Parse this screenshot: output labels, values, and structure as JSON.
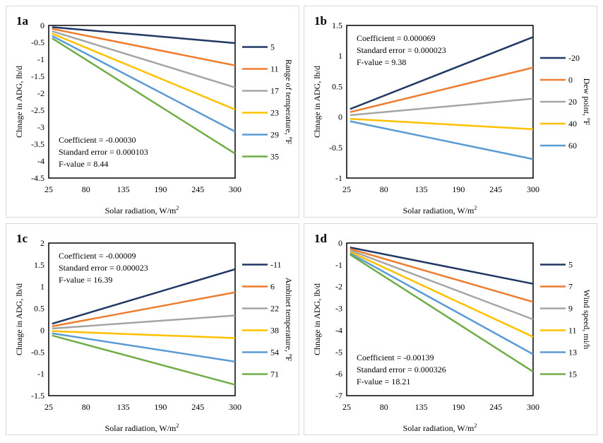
{
  "colors": [
    "#203864",
    "#ED7D31",
    "#A5A5A5",
    "#FFC000",
    "#5B9BD5",
    "#70AD47"
  ],
  "chart_data": [
    {
      "id": "1a",
      "type": "line",
      "panel_label": "1a",
      "xlabel": "Solar radiation, W/m",
      "xlabel_sup": "2",
      "ylabel": "Chnage in ADG, lb/d",
      "legend_title": "Range of temperature, ºF",
      "legend_placement": "right",
      "xlim": [
        25,
        300
      ],
      "xticks": [
        25,
        80,
        135,
        190,
        245,
        300
      ],
      "ylim": [
        -4.5,
        0
      ],
      "yticks": [
        0,
        -0.5,
        -1,
        -1.5,
        -2,
        -2.5,
        -3,
        -3.5,
        -4,
        -4.5
      ],
      "x": [
        30,
        300
      ],
      "series": [
        {
          "name": "5",
          "values": [
            -0.05,
            -0.52
          ]
        },
        {
          "name": "11",
          "values": [
            -0.1,
            -1.18
          ]
        },
        {
          "name": "17",
          "values": [
            -0.17,
            -1.83
          ]
        },
        {
          "name": "23",
          "values": [
            -0.24,
            -2.48
          ]
        },
        {
          "name": "29",
          "values": [
            -0.31,
            -3.13
          ]
        },
        {
          "name": "35",
          "values": [
            -0.38,
            -3.78
          ]
        }
      ],
      "stats_placement": "bottom-left",
      "stats": [
        "Coefficient = -0.00030",
        "Standard error = 0.000103",
        "F-value = 8.44"
      ]
    },
    {
      "id": "1b",
      "type": "line",
      "panel_label": "1b",
      "xlabel": "Solar radiation, W/m",
      "xlabel_sup": "2",
      "ylabel": "Chnage in ADG, lb/d",
      "legend_title": "Dew point, ºF",
      "legend_placement": "right",
      "xlim": [
        25,
        300
      ],
      "xticks": [
        25,
        80,
        135,
        190,
        245,
        300
      ],
      "ylim": [
        -1,
        1.5
      ],
      "yticks": [
        1.5,
        1,
        0.5,
        0,
        -0.5,
        -1
      ],
      "x": [
        30,
        300
      ],
      "series": [
        {
          "name": "-20",
          "values": [
            0.13,
            1.31
          ]
        },
        {
          "name": "0",
          "values": [
            0.08,
            0.81
          ]
        },
        {
          "name": "20",
          "values": [
            0.03,
            0.3
          ]
        },
        {
          "name": "40",
          "values": [
            -0.03,
            -0.2
          ]
        },
        {
          "name": "60",
          "values": [
            -0.07,
            -0.69
          ]
        }
      ],
      "stats_placement": "top-left",
      "stats": [
        "Coefficient = 0.000069",
        "Standard error = 0.000023",
        "F-value = 9.38"
      ]
    },
    {
      "id": "1c",
      "type": "line",
      "panel_label": "1c",
      "xlabel": "Solar radiation, W/m",
      "xlabel_sup": "2",
      "ylabel": "Chnage in ADG, lb/d",
      "legend_title": "Ambinet temperature, ºF",
      "legend_placement": "right",
      "xlim": [
        25,
        300
      ],
      "xticks": [
        25,
        80,
        135,
        190,
        245,
        300
      ],
      "ylim": [
        -1.5,
        2
      ],
      "yticks": [
        2,
        1.5,
        1,
        0.5,
        0,
        -0.5,
        -1,
        -1.5
      ],
      "x": [
        30,
        300
      ],
      "series": [
        {
          "name": "-11",
          "values": [
            0.15,
            1.4
          ]
        },
        {
          "name": "6",
          "values": [
            0.09,
            0.87
          ]
        },
        {
          "name": "22",
          "values": [
            0.04,
            0.34
          ]
        },
        {
          "name": "38",
          "values": [
            -0.02,
            -0.18
          ]
        },
        {
          "name": "54",
          "values": [
            -0.07,
            -0.72
          ]
        },
        {
          "name": "71",
          "values": [
            -0.12,
            -1.25
          ]
        }
      ],
      "stats_placement": "top-left",
      "stats": [
        "Coefficient = -0.00009",
        "Standard error = 0.000023",
        "F-value = 16.39"
      ]
    },
    {
      "id": "1d",
      "type": "line",
      "panel_label": "1d",
      "xlabel": "Solar radiation, W/m",
      "xlabel_sup": "2",
      "ylabel": "Chnage in ADG, lb/d",
      "legend_title": "Wind speed, mi/h",
      "legend_placement": "right",
      "xlim": [
        25,
        300
      ],
      "xticks": [
        25,
        80,
        135,
        190,
        245,
        300
      ],
      "ylim": [
        -7,
        0
      ],
      "yticks": [
        0,
        -1,
        -2,
        -3,
        -4,
        -5,
        -6,
        -7
      ],
      "x": [
        30,
        300
      ],
      "series": [
        {
          "name": "5",
          "values": [
            -0.2,
            -1.87
          ]
        },
        {
          "name": "7",
          "values": [
            -0.27,
            -2.7
          ]
        },
        {
          "name": "9",
          "values": [
            -0.33,
            -3.5
          ]
        },
        {
          "name": "11",
          "values": [
            -0.4,
            -4.3
          ]
        },
        {
          "name": "13",
          "values": [
            -0.47,
            -5.1
          ]
        },
        {
          "name": "15",
          "values": [
            -0.53,
            -5.9
          ]
        }
      ],
      "stats_placement": "bottom-left",
      "stats": [
        "Coefficient = -0.00139",
        "Standard error = 0.000326",
        "F-value = 18.21"
      ]
    }
  ]
}
